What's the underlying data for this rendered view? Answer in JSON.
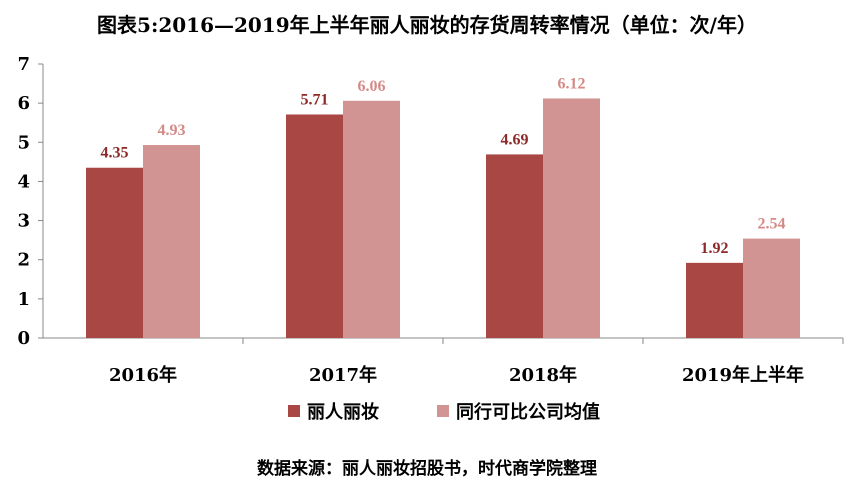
{
  "chart_data": {
    "type": "bar",
    "title": "图表5:2016—2019年上半年丽人丽妆的存货周转率情况（单位：次/年）",
    "categories": [
      "2016年",
      "2017年",
      "2018年",
      "2019年上半年"
    ],
    "series": [
      {
        "name": "丽人丽妆",
        "color": "#a84744",
        "label_color": "#8b2a28",
        "values": [
          4.35,
          5.71,
          4.69,
          1.92
        ],
        "labels": [
          "4.35",
          "5.71",
          "4.69",
          "1.92"
        ]
      },
      {
        "name": "同行可比公司均值",
        "color": "#d19492",
        "label_color": "#d48a87",
        "values": [
          4.93,
          6.06,
          6.12,
          2.54
        ],
        "labels": [
          "4.93",
          "6.06",
          "6.12",
          "2.54"
        ]
      }
    ],
    "yticks": [
      "0",
      "1",
      "2",
      "3",
      "4",
      "5",
      "6",
      "7"
    ],
    "ylim": [
      0,
      7
    ],
    "grid": false,
    "legend_position": "bottom",
    "source": "数据来源：丽人丽妆招股书，时代商学院整理"
  }
}
